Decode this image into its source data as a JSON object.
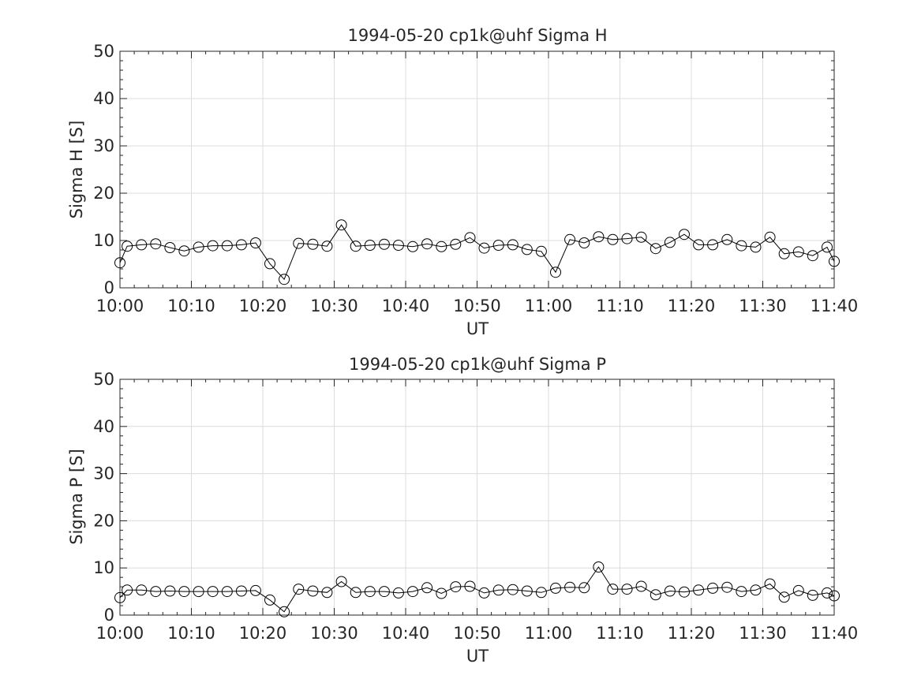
{
  "chart_data": [
    {
      "type": "line",
      "title": "1994-05-20  cp1k@uhf Sigma H",
      "xlabel": "UT",
      "ylabel": "Sigma H [S]",
      "xlim": [
        "10:00",
        "11:40"
      ],
      "ylim": [
        0,
        50
      ],
      "xticks": [
        "10:00",
        "10:10",
        "10:20",
        "10:30",
        "10:40",
        "10:50",
        "11:00",
        "11:10",
        "11:20",
        "11:30",
        "11:40"
      ],
      "yticks": [
        0,
        10,
        20,
        30,
        40,
        50
      ],
      "grid": true,
      "marker": "circle",
      "series": [
        {
          "x": [
            "10:00",
            "10:01",
            "10:03",
            "10:05",
            "10:07",
            "10:09",
            "10:11",
            "10:13",
            "10:15",
            "10:17",
            "10:19",
            "10:21",
            "10:23",
            "10:25",
            "10:27",
            "10:29",
            "10:31",
            "10:33",
            "10:35",
            "10:37",
            "10:39",
            "10:41",
            "10:43",
            "10:45",
            "10:47",
            "10:49",
            "10:51",
            "10:53",
            "10:55",
            "10:57",
            "10:59",
            "11:01",
            "11:03",
            "11:05",
            "11:07",
            "11:09",
            "11:11",
            "11:13",
            "11:15",
            "11:17",
            "11:19",
            "11:21",
            "11:23",
            "11:25",
            "11:27",
            "11:29",
            "11:31",
            "11:33",
            "11:35",
            "11:37",
            "11:39",
            "11:40"
          ],
          "values": [
            5.3,
            8.8,
            9.1,
            9.3,
            8.5,
            7.8,
            8.6,
            8.9,
            8.9,
            9.1,
            9.5,
            5.1,
            1.8,
            9.4,
            9.2,
            8.8,
            13.3,
            8.8,
            9.0,
            9.2,
            9.0,
            8.7,
            9.3,
            8.7,
            9.2,
            10.6,
            8.4,
            9.0,
            9.1,
            8.1,
            7.7,
            3.3,
            10.2,
            9.5,
            10.8,
            10.2,
            10.4,
            10.7,
            8.3,
            9.6,
            11.3,
            9.1,
            9.1,
            10.2,
            8.9,
            8.6,
            10.7,
            7.2,
            7.6,
            6.8,
            8.6,
            5.6
          ]
        }
      ]
    },
    {
      "type": "line",
      "title": "1994-05-20  cp1k@uhf Sigma P",
      "xlabel": "UT",
      "ylabel": "Sigma P [S]",
      "xlim": [
        "10:00",
        "11:40"
      ],
      "ylim": [
        0,
        50
      ],
      "xticks": [
        "10:00",
        "10:10",
        "10:20",
        "10:30",
        "10:40",
        "10:50",
        "11:00",
        "11:10",
        "11:20",
        "11:30",
        "11:40"
      ],
      "yticks": [
        0,
        10,
        20,
        30,
        40,
        50
      ],
      "grid": true,
      "marker": "circle",
      "series": [
        {
          "x": [
            "10:00",
            "10:01",
            "10:03",
            "10:05",
            "10:07",
            "10:09",
            "10:11",
            "10:13",
            "10:15",
            "10:17",
            "10:19",
            "10:21",
            "10:23",
            "10:25",
            "10:27",
            "10:29",
            "10:31",
            "10:33",
            "10:35",
            "10:37",
            "10:39",
            "10:41",
            "10:43",
            "10:45",
            "10:47",
            "10:49",
            "10:51",
            "10:53",
            "10:55",
            "10:57",
            "10:59",
            "11:01",
            "11:03",
            "11:05",
            "11:07",
            "11:09",
            "11:11",
            "11:13",
            "11:15",
            "11:17",
            "11:19",
            "11:21",
            "11:23",
            "11:25",
            "11:27",
            "11:29",
            "11:31",
            "11:33",
            "11:35",
            "11:37",
            "11:39",
            "11:40"
          ],
          "values": [
            3.7,
            5.3,
            5.3,
            5.0,
            5.1,
            5.0,
            5.0,
            5.0,
            5.0,
            5.1,
            5.2,
            3.2,
            0.7,
            5.5,
            5.1,
            4.8,
            7.1,
            4.8,
            5.0,
            5.0,
            4.7,
            5.0,
            5.8,
            4.6,
            6.0,
            6.1,
            4.7,
            5.3,
            5.4,
            5.1,
            4.8,
            5.7,
            5.9,
            5.8,
            10.2,
            5.5,
            5.5,
            6.1,
            4.3,
            5.1,
            4.9,
            5.3,
            5.7,
            5.9,
            5.0,
            5.3,
            6.6,
            3.8,
            5.2,
            4.2,
            4.7,
            4.1
          ]
        }
      ]
    }
  ]
}
